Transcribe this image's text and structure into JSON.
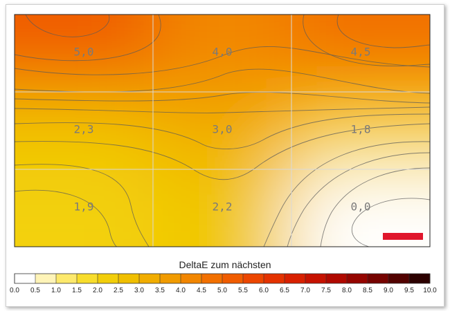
{
  "chart_data": {
    "type": "heatmap",
    "title": "DeltaE zum nächsten",
    "grid_rows": 3,
    "grid_cols": 3,
    "values": [
      [
        5.0,
        4.0,
        4.5
      ],
      [
        2.3,
        3.0,
        1.8
      ],
      [
        1.9,
        2.2,
        0.0
      ]
    ],
    "value_labels": [
      [
        "5,0",
        "4,0",
        "4,5"
      ],
      [
        "2,3",
        "3,0",
        "1,8"
      ],
      [
        "1,9",
        "2,2",
        "0,0"
      ]
    ],
    "colorbar": {
      "min": 0.0,
      "max": 10.0,
      "ticks": [
        "0.0",
        "0.5",
        "1.0",
        "1.5",
        "2.0",
        "2.5",
        "3.0",
        "3.5",
        "4.0",
        "4.5",
        "5.0",
        "5.5",
        "6.0",
        "6.5",
        "7.0",
        "7.5",
        "8.0",
        "8.5",
        "9.0",
        "9.5",
        "10.0"
      ],
      "colors": [
        "#ffffff",
        "#fff4b8",
        "#fde96c",
        "#f8dd2c",
        "#f2ce0a",
        "#f0bf00",
        "#f1ad00",
        "#f19b00",
        "#f28600",
        "#f27000",
        "#f05c00",
        "#ec4600",
        "#e43200",
        "#d82000",
        "#c61200",
        "#b00900",
        "#950500",
        "#760300",
        "#520200",
        "#2c0100",
        "#000000"
      ]
    },
    "legend_marker_color": "#e0162b",
    "grid": true
  }
}
